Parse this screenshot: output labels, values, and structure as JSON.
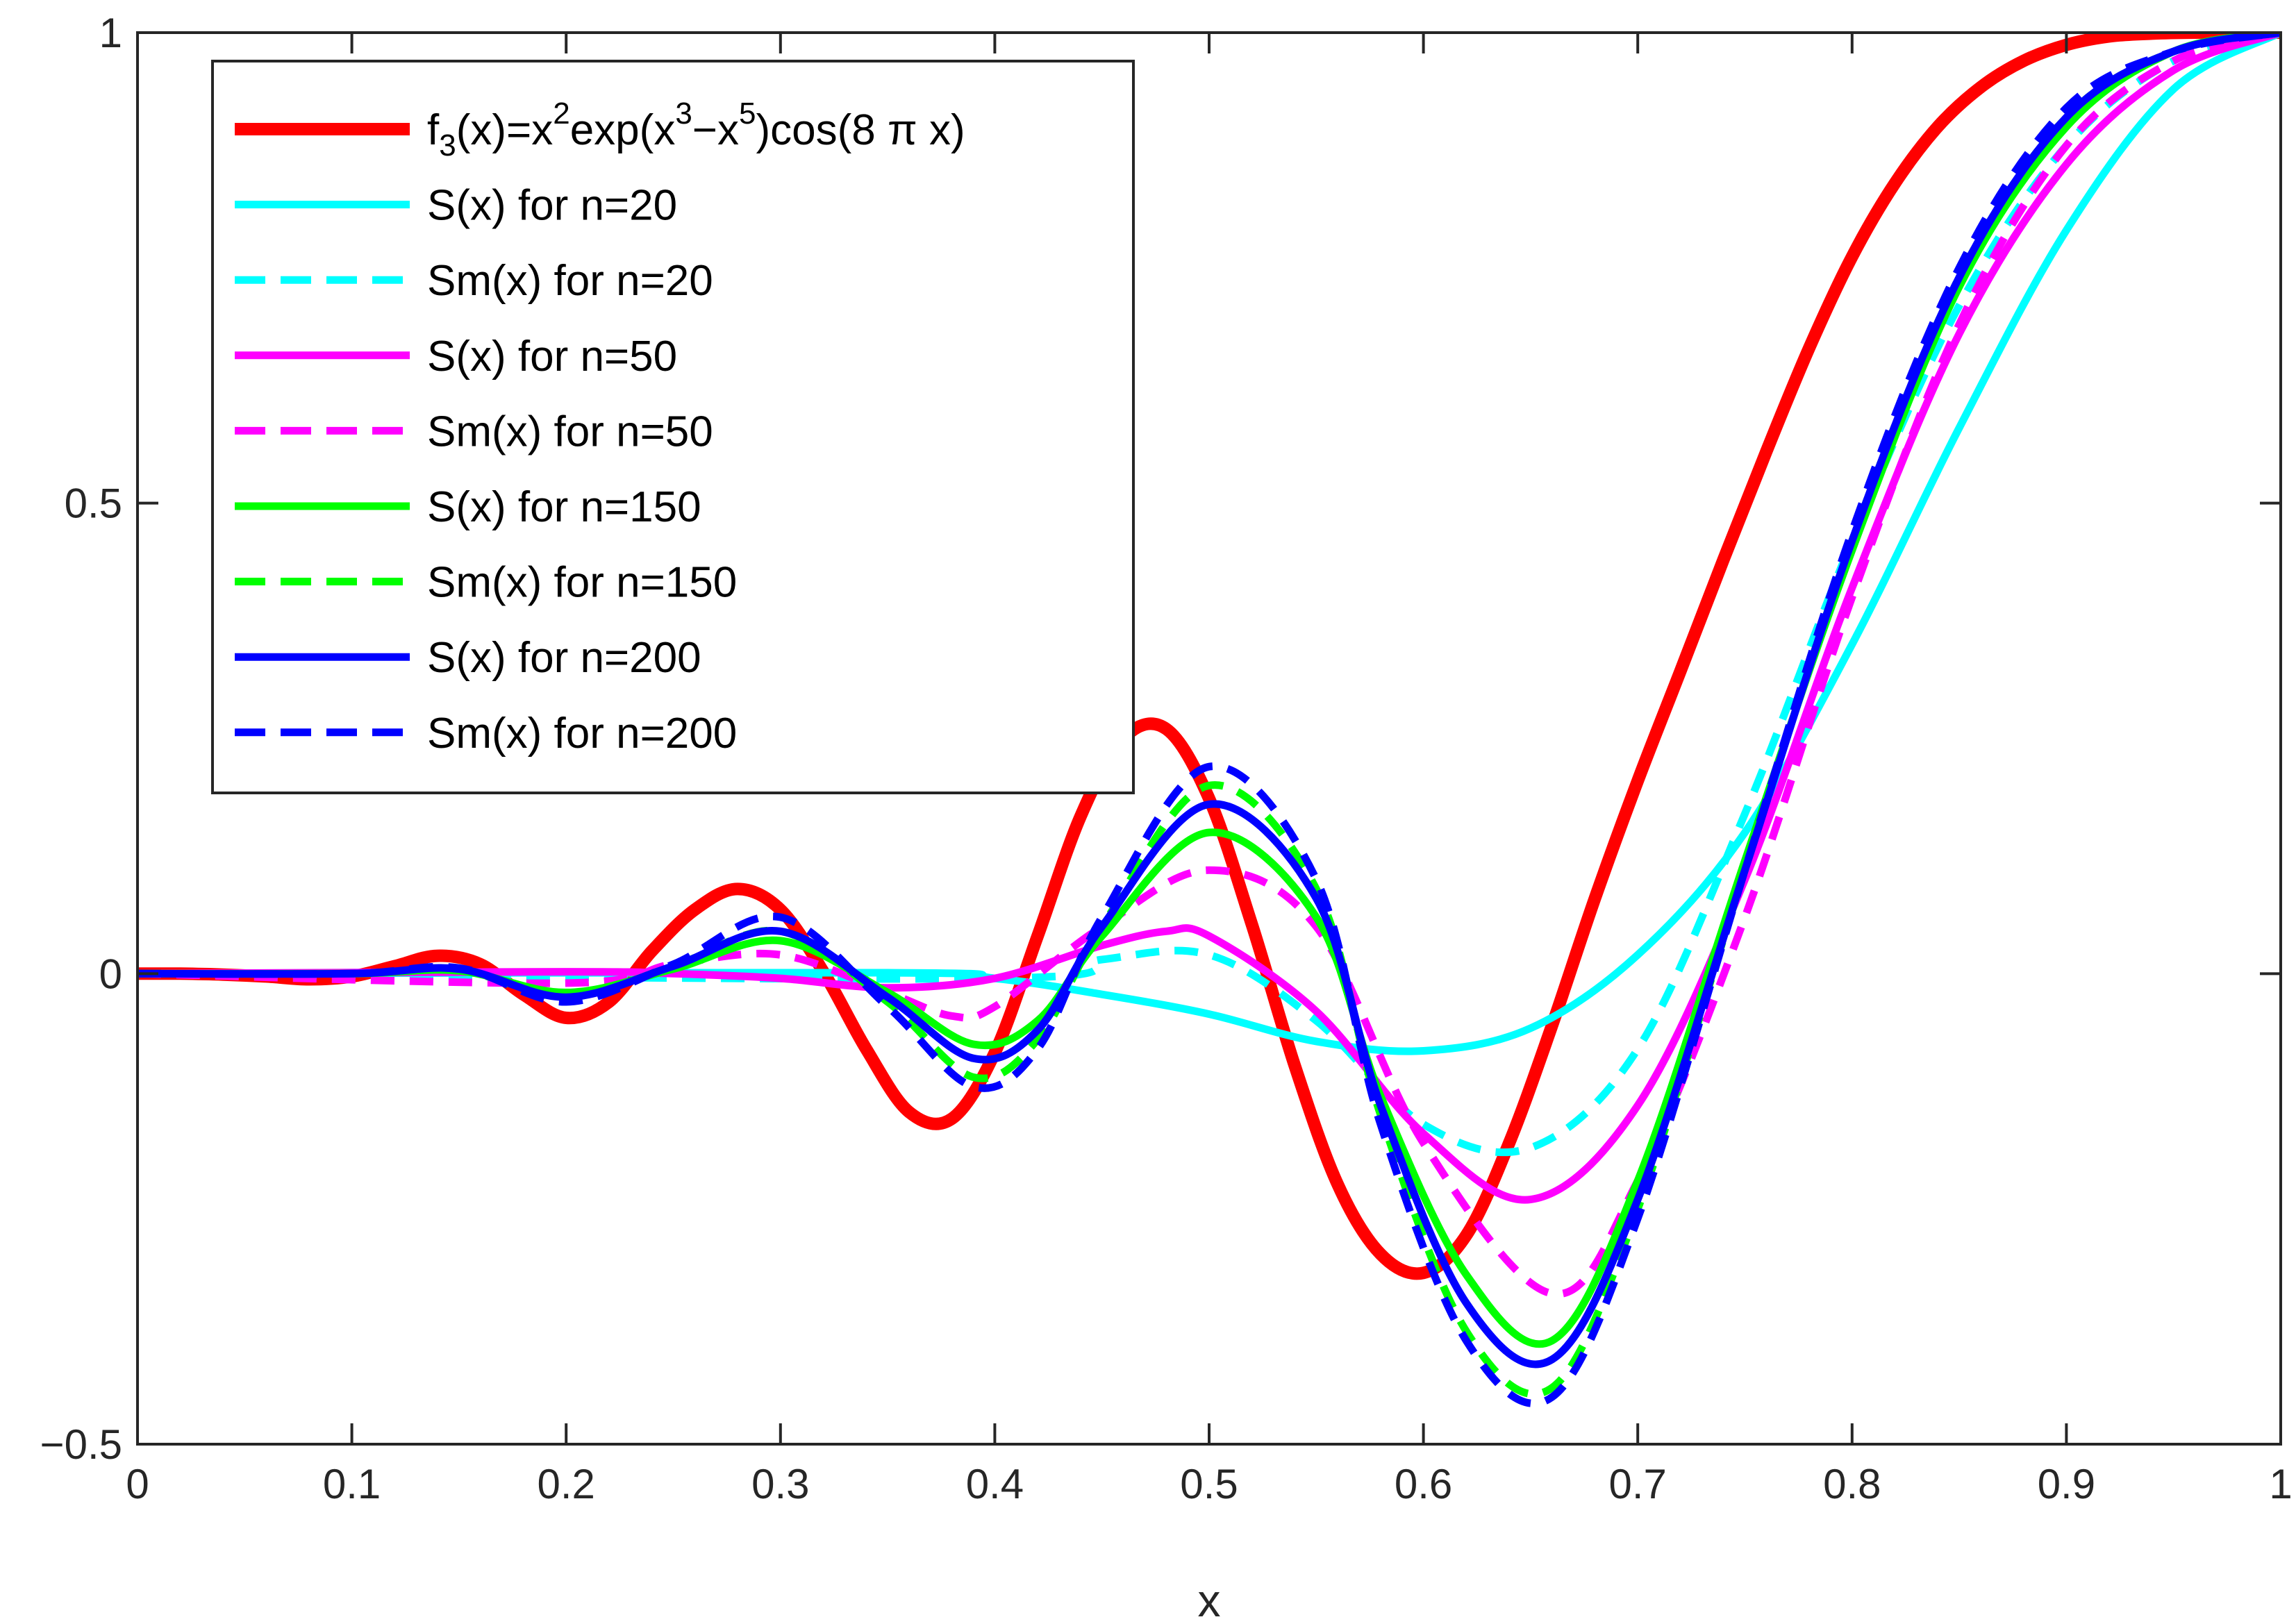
{
  "chart_data": {
    "type": "line",
    "title": "",
    "xlabel": "x",
    "ylabel": "",
    "xlim": [
      0,
      1
    ],
    "ylim": [
      -0.5,
      1
    ],
    "grid": false,
    "legend_position": "top-left",
    "x_ticks": [
      {
        "value": 0,
        "label": "0"
      },
      {
        "value": 0.1,
        "label": "0.1"
      },
      {
        "value": 0.2,
        "label": "0.2"
      },
      {
        "value": 0.3,
        "label": "0.3"
      },
      {
        "value": 0.4,
        "label": "0.4"
      },
      {
        "value": 0.5,
        "label": "0.5"
      },
      {
        "value": 0.6,
        "label": "0.6"
      },
      {
        "value": 0.7,
        "label": "0.7"
      },
      {
        "value": 0.8,
        "label": "0.8"
      },
      {
        "value": 0.9,
        "label": "0.9"
      },
      {
        "value": 1,
        "label": "1"
      }
    ],
    "y_ticks": [
      {
        "value": -0.5,
        "label": "−0.5"
      },
      {
        "value": 0,
        "label": "0"
      },
      {
        "value": 0.5,
        "label": "0.5"
      },
      {
        "value": 1,
        "label": "1"
      }
    ],
    "series": [
      {
        "id": "f3",
        "name": "f3(x)=x2exp(x3−x5)cos(8 π x)",
        "legend_parts": [
          "f",
          "3",
          "(x)=x",
          "2",
          "exp(x",
          "3",
          "−x",
          "5",
          ")cos(8 π x)"
        ],
        "color": "#ff0000",
        "style": "solid",
        "width": "thick",
        "x": [
          0.0,
          0.02,
          0.04,
          0.06,
          0.08,
          0.1,
          0.12,
          0.14,
          0.16,
          0.18,
          0.2,
          0.22,
          0.24,
          0.26,
          0.28,
          0.3,
          0.32,
          0.34,
          0.36,
          0.38,
          0.4,
          0.42,
          0.44,
          0.46,
          0.48,
          0.5,
          0.52,
          0.54,
          0.56,
          0.58,
          0.6,
          0.62,
          0.64,
          0.66,
          0.68,
          0.7,
          0.72,
          0.74,
          0.76,
          0.78,
          0.8,
          0.82,
          0.84,
          0.86,
          0.88,
          0.9,
          0.92,
          0.94,
          0.96,
          0.98,
          1.0
        ],
        "y": [
          0.0,
          0.0,
          -0.001,
          -0.003,
          -0.006,
          -0.003,
          0.008,
          0.019,
          0.01,
          -0.022,
          -0.047,
          -0.03,
          0.024,
          0.068,
          0.09,
          0.068,
          0.002,
          -0.08,
          -0.147,
          -0.154,
          -0.084,
          0.04,
          0.167,
          0.25,
          0.26,
          0.186,
          0.052,
          -0.098,
          -0.224,
          -0.298,
          -0.318,
          -0.278,
          -0.18,
          -0.055,
          0.08,
          0.205,
          0.322,
          0.44,
          0.555,
          0.665,
          0.762,
          0.84,
          0.9,
          0.942,
          0.97,
          0.987,
          0.996,
          0.999,
          1.0,
          1.0,
          1.0
        ]
      },
      {
        "id": "s20",
        "name": "S(x) for n=20",
        "color": "#00ffff",
        "style": "solid",
        "width": "normal",
        "x": [
          0.0,
          0.35,
          0.4,
          0.45,
          0.5,
          0.55,
          0.6,
          0.65,
          0.7,
          0.75,
          0.8,
          0.85,
          0.9,
          0.95,
          1.0
        ],
        "y": [
          0.0,
          0.001,
          -0.005,
          -0.022,
          -0.043,
          -0.072,
          -0.082,
          -0.058,
          0.02,
          0.15,
          0.35,
          0.58,
          0.79,
          0.94,
          1.0
        ]
      },
      {
        "id": "sm20",
        "name": "Sm(x) for n=20",
        "color": "#00ffff",
        "style": "dashed",
        "width": "normal",
        "x": [
          0.0,
          0.4,
          0.45,
          0.5,
          0.55,
          0.6,
          0.65,
          0.7,
          0.75,
          0.8,
          0.85,
          0.9,
          0.95,
          1.0
        ],
        "y": [
          0.0,
          -0.005,
          0.015,
          0.02,
          -0.05,
          -0.16,
          -0.185,
          -0.08,
          0.17,
          0.46,
          0.71,
          0.88,
          0.97,
          1.0
        ]
      },
      {
        "id": "s50",
        "name": "S(x) for n=50",
        "color": "#ff00ff",
        "style": "solid",
        "width": "normal",
        "x": [
          0.0,
          0.2,
          0.25,
          0.3,
          0.35,
          0.4,
          0.45,
          0.48,
          0.5,
          0.55,
          0.6,
          0.65,
          0.7,
          0.75,
          0.8,
          0.85,
          0.9,
          0.95,
          1.0
        ],
        "y": [
          0.0,
          0.002,
          0.0,
          -0.005,
          -0.015,
          -0.005,
          0.03,
          0.045,
          0.04,
          -0.04,
          -0.17,
          -0.24,
          -0.14,
          0.1,
          0.41,
          0.68,
          0.86,
          0.96,
          1.0
        ]
      },
      {
        "id": "sm50",
        "name": "Sm(x) for n=50",
        "color": "#ff00ff",
        "style": "dashed",
        "width": "normal",
        "x": [
          0.0,
          0.2,
          0.25,
          0.3,
          0.35,
          0.38,
          0.4,
          0.45,
          0.5,
          0.55,
          0.6,
          0.66,
          0.7,
          0.75,
          0.8,
          0.85,
          0.9,
          0.95,
          1.0
        ],
        "y": [
          0.0,
          -0.01,
          0.01,
          0.02,
          -0.02,
          -0.045,
          -0.035,
          0.05,
          0.11,
          0.05,
          -0.18,
          -0.34,
          -0.22,
          0.06,
          0.4,
          0.69,
          0.88,
          0.97,
          1.0
        ]
      },
      {
        "id": "s150",
        "name": "S(x) for n=150",
        "color": "#00ff00",
        "style": "solid",
        "width": "normal",
        "x": [
          0.0,
          0.1,
          0.15,
          0.2,
          0.25,
          0.3,
          0.35,
          0.39,
          0.42,
          0.45,
          0.5,
          0.55,
          0.58,
          0.62,
          0.66,
          0.7,
          0.75,
          0.8,
          0.85,
          0.9,
          0.95,
          1.0
        ],
        "y": [
          0.0,
          0.0,
          0.003,
          -0.02,
          0.005,
          0.035,
          -0.02,
          -0.075,
          -0.05,
          0.04,
          0.15,
          0.06,
          -0.13,
          -0.32,
          -0.39,
          -0.22,
          0.12,
          0.45,
          0.73,
          0.9,
          0.98,
          1.0
        ]
      },
      {
        "id": "sm150",
        "name": "Sm(x) for n=150",
        "color": "#00ff00",
        "style": "dashed",
        "width": "normal",
        "x": [
          0.0,
          0.1,
          0.15,
          0.2,
          0.25,
          0.3,
          0.35,
          0.39,
          0.42,
          0.45,
          0.5,
          0.55,
          0.58,
          0.62,
          0.66,
          0.7,
          0.75,
          0.8,
          0.85,
          0.9,
          0.95,
          1.0
        ],
        "y": [
          0.0,
          0.0,
          0.004,
          -0.025,
          0.008,
          0.045,
          -0.03,
          -0.11,
          -0.07,
          0.05,
          0.2,
          0.09,
          -0.15,
          -0.38,
          -0.44,
          -0.25,
          0.11,
          0.46,
          0.74,
          0.91,
          0.98,
          1.0
        ]
      },
      {
        "id": "s200",
        "name": "S(x) for n=200",
        "color": "#0000ff",
        "style": "solid",
        "width": "normal",
        "x": [
          0.0,
          0.1,
          0.15,
          0.2,
          0.25,
          0.3,
          0.35,
          0.39,
          0.42,
          0.45,
          0.5,
          0.55,
          0.58,
          0.62,
          0.66,
          0.7,
          0.75,
          0.8,
          0.85,
          0.9,
          0.95,
          1.0
        ],
        "y": [
          0.0,
          0.0,
          0.005,
          -0.025,
          0.008,
          0.045,
          -0.025,
          -0.09,
          -0.06,
          0.05,
          0.18,
          0.08,
          -0.14,
          -0.35,
          -0.41,
          -0.24,
          0.11,
          0.46,
          0.74,
          0.91,
          0.98,
          1.0
        ]
      },
      {
        "id": "sm200",
        "name": "Sm(x) for n=200",
        "color": "#0000ff",
        "style": "dashed",
        "width": "normal",
        "x": [
          0.0,
          0.1,
          0.15,
          0.2,
          0.25,
          0.3,
          0.35,
          0.39,
          0.42,
          0.45,
          0.5,
          0.55,
          0.58,
          0.62,
          0.66,
          0.7,
          0.75,
          0.8,
          0.85,
          0.9,
          0.95,
          1.0
        ],
        "y": [
          0.0,
          0.0,
          0.006,
          -0.03,
          0.01,
          0.06,
          -0.035,
          -0.12,
          -0.08,
          0.06,
          0.22,
          0.1,
          -0.16,
          -0.39,
          -0.45,
          -0.26,
          0.11,
          0.47,
          0.75,
          0.92,
          0.98,
          1.0
        ]
      }
    ]
  }
}
